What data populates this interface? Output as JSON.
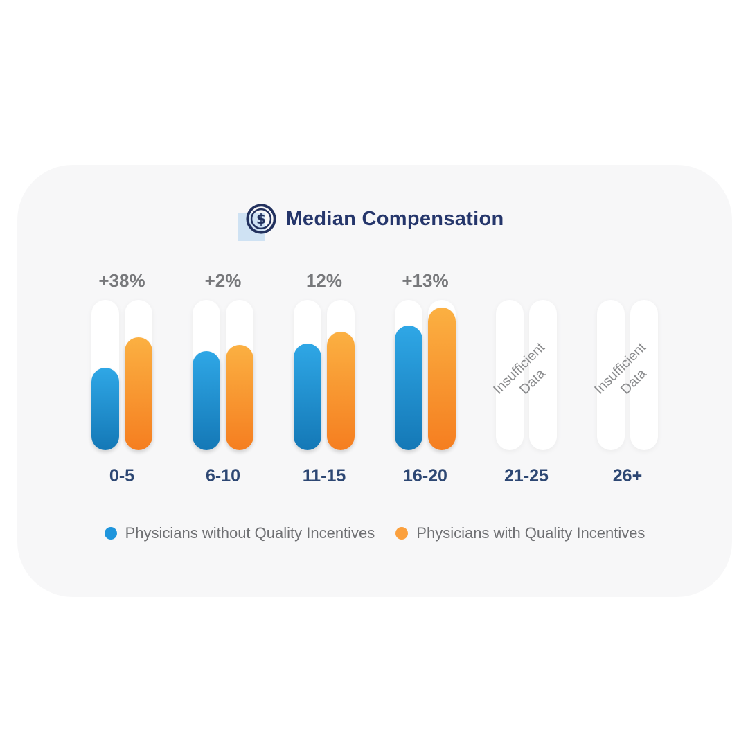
{
  "title": {
    "label": "Median Compensation",
    "icon": "dollar-coin-icon"
  },
  "chart_data": {
    "type": "bar",
    "title": "Median Compensation",
    "categories": [
      "0-5",
      "6-10",
      "11-15",
      "16-20",
      "21-25",
      "26+"
    ],
    "series": [
      {
        "name": "Physicians without Quality Incentives",
        "values_pct_of_track": [
          55,
          66,
          71,
          83,
          null,
          null
        ]
      },
      {
        "name": "Physicians with Quality Incentives",
        "values_pct_of_track": [
          75,
          70,
          79,
          95,
          null,
          null
        ]
      }
    ],
    "difference_labels": [
      "+38%",
      "+2%",
      "12%",
      "+13%",
      null,
      null
    ],
    "no_data_label": "Insufficient\nData",
    "no_data_categories": [
      "21-25",
      "26+"
    ],
    "ylim": [
      0,
      100
    ],
    "grid": false,
    "legend_position": "bottom"
  },
  "legend": {
    "items": [
      {
        "label": "Physicians without Quality Incentives",
        "color": "#1f95dc"
      },
      {
        "label": "Physicians with Quality Incentives",
        "color": "#fba03d"
      }
    ]
  },
  "colors": {
    "page_bg": "#ffffff",
    "card_bg": "#f7f7f8",
    "track": "#ffffff",
    "blue_top": "#2fa7e6",
    "blue_bottom": "#1478b6",
    "orange_top": "#fbb042",
    "orange_bottom": "#f57e20",
    "title_text": "#25366b",
    "category_text": "#2d4773",
    "delta_text": "#77787b",
    "legend_text": "#6f7073",
    "nodata_text": "#8a8b8d",
    "icon_navy": "#22315e",
    "icon_square": "#cfe2f3"
  }
}
